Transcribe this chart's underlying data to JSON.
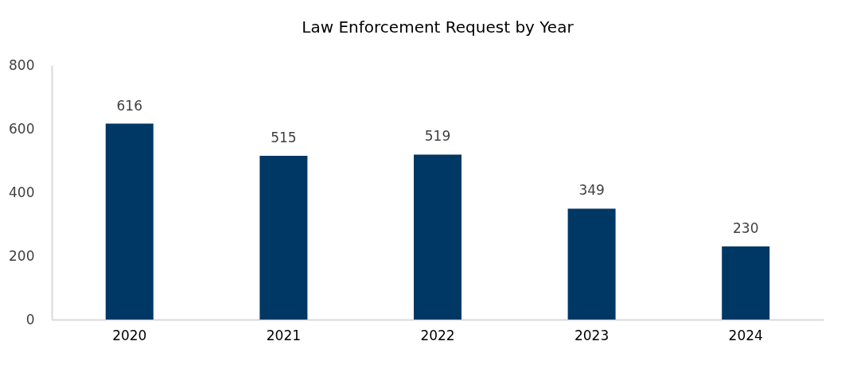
{
  "chart_data": {
    "type": "bar",
    "title": "Law Enforcement Request by Year",
    "categories": [
      "2020",
      "2021",
      "2022",
      "2023",
      "2024"
    ],
    "values": [
      616,
      515,
      519,
      349,
      230
    ],
    "color": "#003865",
    "ylim": [
      0,
      800
    ],
    "yticks": [
      0,
      200,
      400,
      600,
      800
    ],
    "grid": false,
    "data_labels": true
  }
}
